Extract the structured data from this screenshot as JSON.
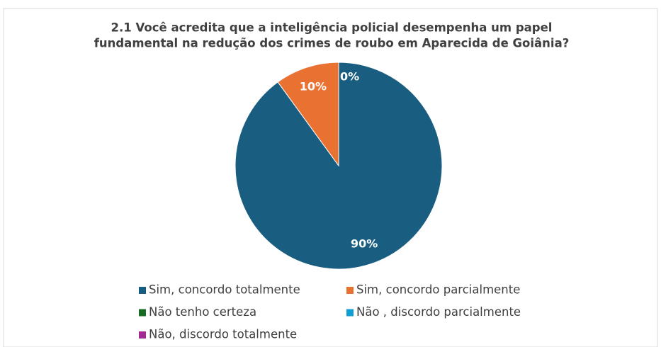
{
  "chart_data": {
    "type": "pie",
    "title": [
      "2.1  Você acredita que a inteligência policial desempenha um papel",
      "fundamental na redução dos crimes de roubo em Aparecida de Goiânia?"
    ],
    "categories": [
      "Sim, concordo totalmente",
      "Sim, concordo parcialmente",
      "Não tenho certeza",
      "Não , discordo parcialmente",
      "Não, discordo totalmente"
    ],
    "values": [
      90,
      10,
      0,
      0,
      0
    ],
    "value_labels": [
      "90%",
      "10%",
      "0%",
      null,
      null
    ],
    "colors": [
      "#195e80",
      "#e97132",
      "#196b24",
      "#0f9ed5",
      "#a02b93"
    ],
    "legend": "bottom"
  }
}
